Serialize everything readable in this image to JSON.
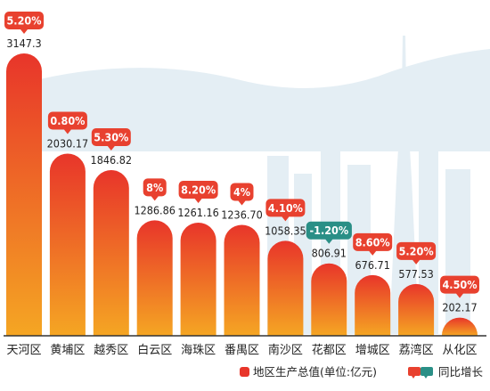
{
  "chart_data": {
    "type": "bar",
    "categories": [
      "天河区",
      "黄埔区",
      "越秀区",
      "白云区",
      "海珠区",
      "番禺区",
      "南沙区",
      "花都区",
      "增城区",
      "荔湾区",
      "从化区"
    ],
    "series": [
      {
        "name": "地区生产总值(单位:亿元)",
        "values": [
          3147.3,
          2030.17,
          1846.82,
          1286.86,
          1261.16,
          1236.7,
          1058.35,
          806.91,
          676.71,
          577.53,
          202.17
        ],
        "labels": [
          "3147.3",
          "2030.17",
          "1846.82",
          "1286.86",
          "1261.16",
          "1236.70",
          "1058.35",
          "806.91",
          "676.71",
          "577.53",
          "202.17"
        ]
      },
      {
        "name": "同比增长",
        "values": [
          5.2,
          0.8,
          5.3,
          8,
          8.2,
          4,
          4.1,
          -1.2,
          8.6,
          5.2,
          4.5
        ],
        "labels": [
          "5.20%",
          "0.80%",
          "5.30%",
          "8%",
          "8.20%",
          "4%",
          "4.10%",
          "-1.20%",
          "8.60%",
          "5.20%",
          "4.50%"
        ]
      }
    ],
    "ylim": [
      0,
      3147.3
    ],
    "grid": false,
    "legend": "bottom-right",
    "colors": {
      "bar_top": "#e8352a",
      "bar_bottom": "#f5a623",
      "bubble_positive": "#e8412f",
      "bubble_negative": "#2a8f86",
      "skyline": "#e4eef4",
      "axis": "#333333",
      "text": "#222222"
    }
  }
}
